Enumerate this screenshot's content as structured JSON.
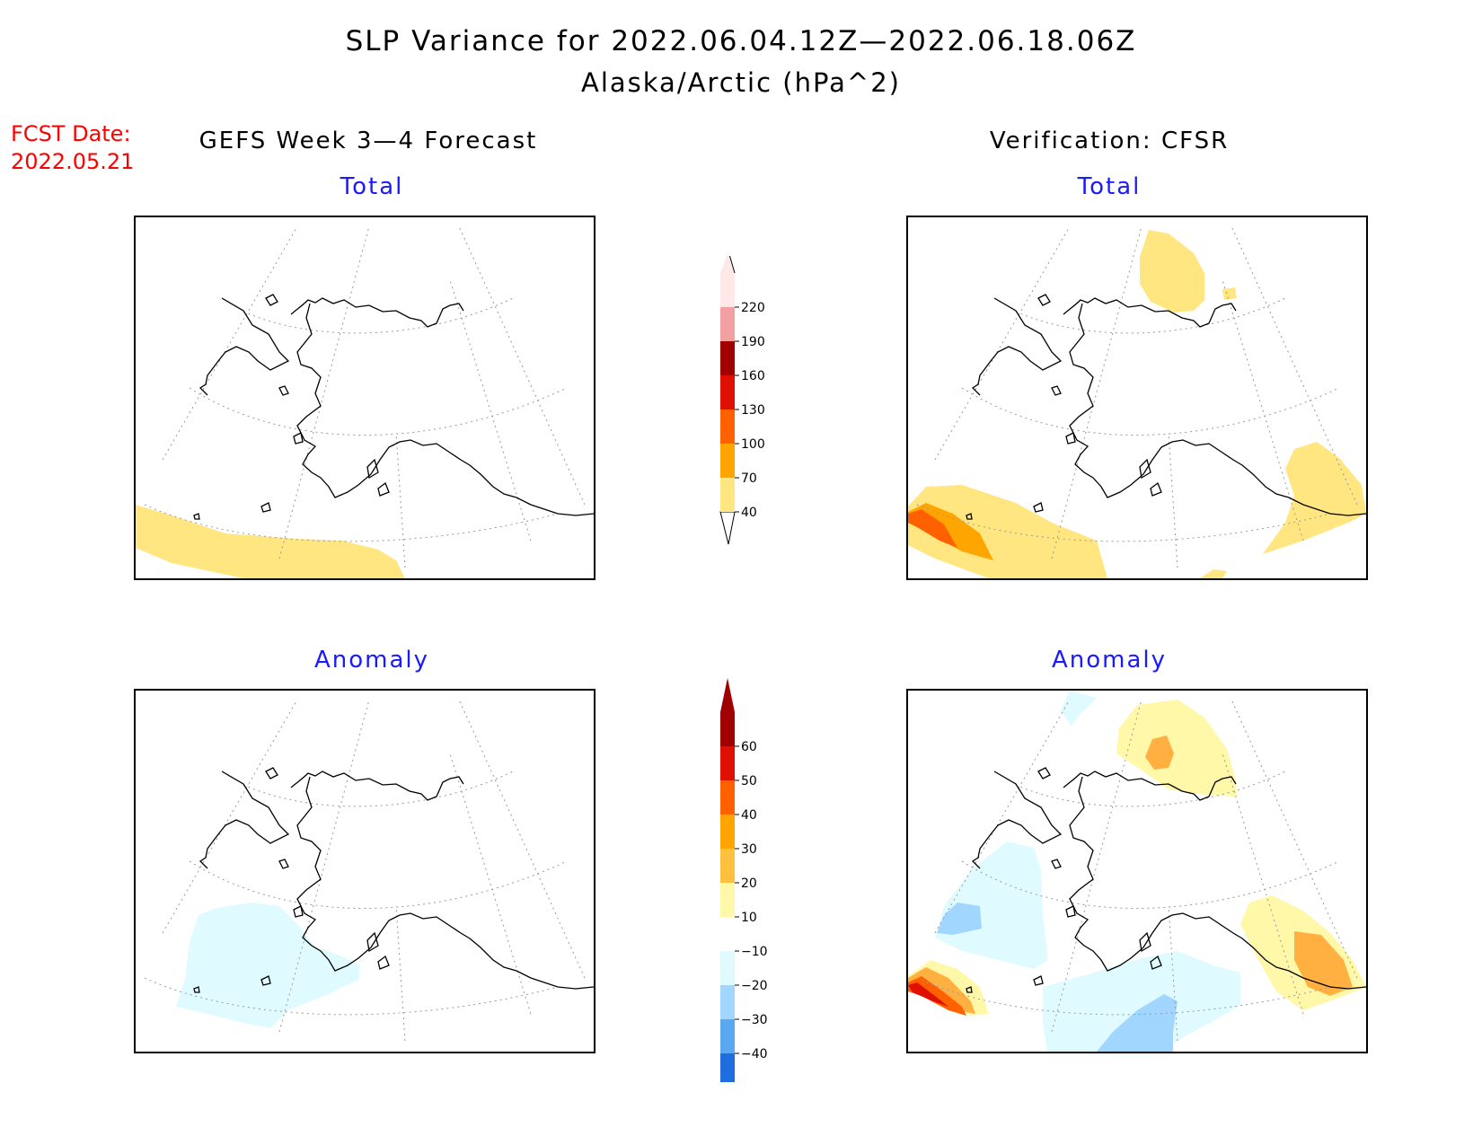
{
  "title": {
    "line1": "SLP Variance for 2022.06.04.12Z—2022.06.18.06Z",
    "line2": "Alaska/Arctic (hPa^2)"
  },
  "fcst_date": {
    "label": "FCST Date:",
    "value": "2022.05.21"
  },
  "columns": {
    "left": "GEFS Week 3—4 Forecast",
    "right": "Verification: CFSR"
  },
  "panels": {
    "forecast_total": "Total",
    "verification_total": "Total",
    "forecast_anomaly": "Anomaly",
    "verification_anomaly": "Anomaly"
  },
  "colorbars": {
    "total": {
      "levels": [
        "40",
        "70",
        "100",
        "130",
        "160",
        "190",
        "220"
      ],
      "colors": [
        "#ffe680",
        "#ffa500",
        "#ff6000",
        "#e01000",
        "#a00000",
        "#f2a0a0",
        "#ffe8e8"
      ]
    },
    "anomaly": {
      "levels": [
        "60",
        "50",
        "40",
        "30",
        "20",
        "10",
        "−10",
        "−20",
        "−30",
        "−40"
      ],
      "colors": [
        "#a00000",
        "#e01000",
        "#ff6000",
        "#ffa500",
        "#ffc040",
        "#fff8a8",
        "#ffffff",
        "#e0fbff",
        "#a0d6ff",
        "#5aa8f2",
        "#1e6ee0",
        "#1060d0"
      ]
    }
  },
  "colors": {
    "title_red": "#ff0000",
    "panel_title_blue": "#1a1aff"
  }
}
